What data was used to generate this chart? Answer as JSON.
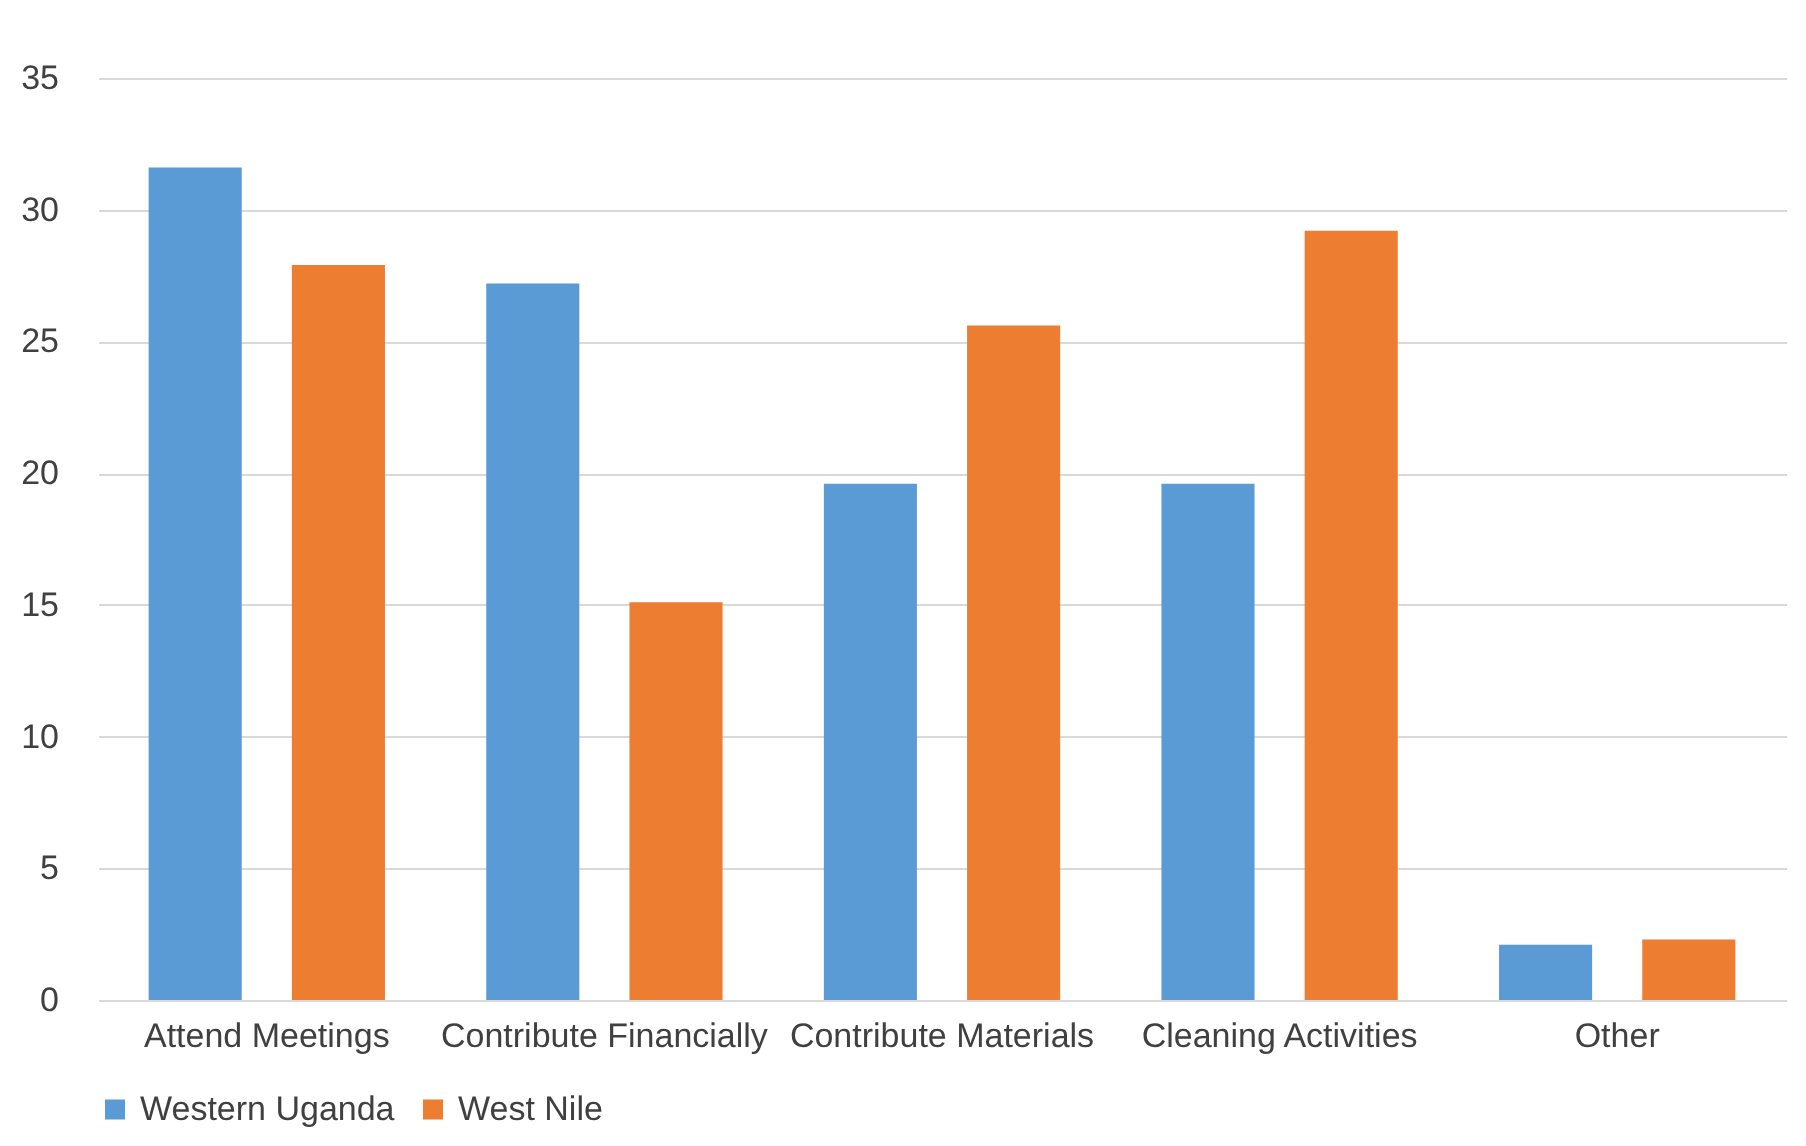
{
  "chart_data": {
    "type": "bar",
    "categories": [
      "Attend Meetings",
      "Contribute Financially",
      "Contribute Materials",
      "Cleaning Activities",
      "Other"
    ],
    "series": [
      {
        "name": "Western Uganda",
        "color": "#5b9bd5",
        "values": [
          31.6,
          27.2,
          19.6,
          19.6,
          2.1
        ]
      },
      {
        "name": "West Nile",
        "color": "#ed7d31",
        "values": [
          27.9,
          15.1,
          25.6,
          29.2,
          2.3
        ]
      }
    ],
    "ylim": [
      0,
      35
    ],
    "yticks": [
      0,
      5,
      10,
      15,
      20,
      25,
      30,
      35
    ],
    "grid": "y",
    "legend": "bottom"
  }
}
